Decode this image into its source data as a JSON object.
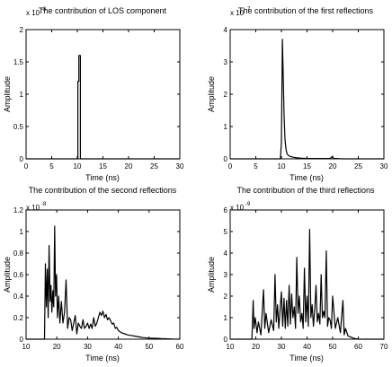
{
  "chart_data": [
    {
      "type": "line",
      "title": "The contribution of LOS component",
      "xlabel": "Time (ns)",
      "ylabel": "Amplitude",
      "xlim": [
        0,
        30
      ],
      "ylim": [
        0,
        2
      ],
      "exponent": "-8",
      "xticks": [
        "0",
        "5",
        "10",
        "15",
        "20",
        "25",
        "30"
      ],
      "yticks": [
        "0",
        "0.5",
        "1",
        "1.5",
        "2"
      ],
      "grid": false,
      "series": [
        {
          "x": [
            0,
            10.1,
            10.1,
            10.3,
            10.3,
            10.6,
            10.6,
            30
          ],
          "y": [
            0,
            0,
            1.2,
            1.2,
            1.6,
            1.6,
            0,
            0
          ]
        }
      ]
    },
    {
      "type": "line",
      "title": "The contribution of the first reflections",
      "xlabel": "Time (ns)",
      "ylabel": "Amplitude",
      "xlim": [
        0,
        30
      ],
      "ylim": [
        0,
        4
      ],
      "exponent": "-7",
      "xticks": [
        "0",
        "5",
        "10",
        "15",
        "20",
        "25",
        "30"
      ],
      "yticks": [
        "0",
        "1",
        "2",
        "3",
        "4"
      ],
      "grid": false,
      "series": [
        {
          "x": [
            0,
            9.8,
            10.0,
            10.2,
            10.35,
            10.5,
            10.7,
            10.9,
            11.1,
            11.4,
            11.8,
            12.3,
            13.0,
            14.0,
            15.0,
            17.0,
            19.5,
            20.0,
            20.1,
            20.6,
            22,
            30
          ],
          "y": [
            0,
            0,
            0.5,
            3.7,
            2.6,
            1.4,
            0.6,
            0.3,
            0.15,
            0.1,
            0.07,
            0.05,
            0.03,
            0.02,
            0.01,
            0.01,
            0.01,
            0.08,
            0.01,
            0.01,
            0,
            0
          ]
        }
      ]
    },
    {
      "type": "line",
      "title": "The contribution of the second reflections",
      "xlabel": "Time (ns)",
      "ylabel": "Amplitude",
      "xlim": [
        10,
        60
      ],
      "ylim": [
        0,
        1.2
      ],
      "exponent": "-8",
      "xticks": [
        "10",
        "20",
        "30",
        "40",
        "50",
        "60"
      ],
      "yticks": [
        "0",
        "0.2",
        "0.4",
        "0.6",
        "0.8",
        "1",
        "1.2"
      ],
      "grid": false,
      "series": [
        {
          "x": [
            10,
            16,
            16.3,
            16.6,
            16.9,
            17.2,
            17.5,
            17.8,
            18.1,
            18.4,
            18.7,
            19.0,
            19.3,
            19.6,
            19.9,
            20.2,
            20.6,
            21.0,
            21.5,
            22.0,
            22.5,
            23.0,
            23.5,
            24.0,
            24.5,
            25.0,
            25.5,
            26.0,
            26.5,
            27.0,
            27.5,
            28.0,
            28.5,
            29.0,
            29.5,
            30.0,
            30.5,
            31.0,
            31.5,
            32.0,
            32.5,
            33.0,
            33.5,
            34.0,
            34.5,
            35.0,
            35.5,
            36.0,
            36.5,
            37.0,
            37.5,
            38.0,
            38.5,
            39.0,
            39.5,
            40.0,
            41.0,
            42.0,
            43.0,
            44.0,
            45.0,
            46.0,
            47.0,
            48.0,
            50.0,
            52.0,
            54.0,
            56.0,
            58.0,
            60.0
          ],
          "y": [
            0,
            0,
            0.7,
            0.3,
            0.65,
            0.2,
            0.87,
            0.35,
            0.5,
            0.25,
            0.45,
            0.3,
            1.05,
            0.4,
            0.6,
            0.2,
            0.4,
            0.15,
            0.35,
            0.15,
            0.25,
            0.55,
            0.1,
            0.2,
            0.18,
            0.08,
            0.15,
            0.22,
            0.05,
            0.15,
            0.12,
            0.1,
            0.18,
            0.1,
            0.12,
            0.15,
            0.1,
            0.14,
            0.1,
            0.2,
            0.12,
            0.15,
            0.2,
            0.25,
            0.22,
            0.26,
            0.2,
            0.23,
            0.18,
            0.2,
            0.17,
            0.14,
            0.15,
            0.1,
            0.11,
            0.08,
            0.06,
            0.05,
            0.04,
            0.035,
            0.03,
            0.025,
            0.02,
            0.015,
            0.01,
            0.008,
            0.005,
            0.003,
            0.001,
            0
          ]
        }
      ]
    },
    {
      "type": "line",
      "title": "The contribution of the third reflections",
      "xlabel": "Time (ns)",
      "ylabel": "Amplitude",
      "xlim": [
        10,
        70
      ],
      "ylim": [
        0,
        6
      ],
      "exponent": "-9",
      "xticks": [
        "10",
        "20",
        "30",
        "40",
        "50",
        "60",
        "70"
      ],
      "yticks": [
        "0",
        "1",
        "2",
        "3",
        "4",
        "5",
        "6"
      ],
      "grid": false,
      "series": [
        {
          "x": [
            10,
            18.5,
            19,
            19.3,
            19.8,
            20.5,
            21,
            22,
            23,
            23.5,
            24,
            25,
            26,
            27,
            27.5,
            28,
            28.5,
            29,
            29.5,
            30,
            30.5,
            31,
            31.5,
            32,
            32.5,
            33,
            33.5,
            34,
            34.5,
            35,
            35.5,
            36,
            36.5,
            37,
            37.5,
            38,
            38.5,
            39,
            39.5,
            40,
            40.5,
            41,
            41.5,
            42,
            42.5,
            43,
            43.5,
            44,
            44.5,
            45,
            45.5,
            46,
            46.5,
            47,
            47.5,
            48,
            48.5,
            49,
            49.5,
            50,
            51,
            52,
            53,
            54,
            54.5,
            55,
            56,
            57,
            58,
            59,
            60,
            70
          ],
          "y": [
            0,
            0,
            1.8,
            0.5,
            1.0,
            0.3,
            0.8,
            0.2,
            2.3,
            0.5,
            1.2,
            0.3,
            0.9,
            0.4,
            3.0,
            0.8,
            1.6,
            0.5,
            1.4,
            2.2,
            0.6,
            1.9,
            0.5,
            1.8,
            0.6,
            2.5,
            0.7,
            2.1,
            1.0,
            1.5,
            0.5,
            3.8,
            1.2,
            2.0,
            0.8,
            1.2,
            0.5,
            3.3,
            0.8,
            2.0,
            0.6,
            5.1,
            1.0,
            1.6,
            0.6,
            1.4,
            2.5,
            0.8,
            1.2,
            0.7,
            3.0,
            1.0,
            1.3,
            1.0,
            4.1,
            0.6,
            1.0,
            0.9,
            0.5,
            2.0,
            0.5,
            1.0,
            0.3,
            1.8,
            0.2,
            0.5,
            0.15,
            0.1,
            0.05,
            0.02,
            0,
            0
          ]
        }
      ]
    }
  ]
}
